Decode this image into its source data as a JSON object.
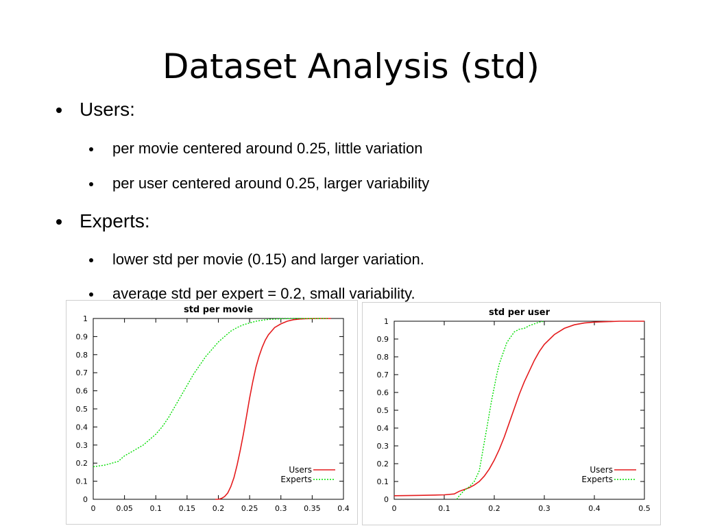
{
  "slide": {
    "title": "Dataset Analysis (std)",
    "bullets": [
      {
        "level": 1,
        "text": "Users:"
      },
      {
        "level": 2,
        "text": "per movie centered around 0.25, little variation"
      },
      {
        "level": 2,
        "text": "per user centered around 0.25, larger variability"
      },
      {
        "level": 1,
        "text": "Experts:"
      },
      {
        "level": 2,
        "text": "lower std per movie (0.15) and larger variation."
      },
      {
        "level": 2,
        "text": "average std per expert = 0.2, small variability."
      }
    ]
  },
  "colors": {
    "users_series": "#e41a1c",
    "experts_series": "#00dd00",
    "axis": "#000000",
    "panel_border": "#cfcfcf"
  },
  "chart_data": [
    {
      "type": "line",
      "title": "std per movie",
      "xlabel": "",
      "ylabel": "",
      "xlim": [
        0,
        0.4
      ],
      "ylim": [
        0,
        1
      ],
      "xticks": [
        "0",
        "0.05",
        "0.1",
        "0.15",
        "0.2",
        "0.25",
        "0.3",
        "0.35",
        "0.4"
      ],
      "yticks": [
        "0",
        "0.1",
        "0.2",
        "0.3",
        "0.4",
        "0.5",
        "0.6",
        "0.7",
        "0.8",
        "0.9",
        "1"
      ],
      "legend_position": "bottom-right",
      "grid": false,
      "series": [
        {
          "name": "Users",
          "style": "solid",
          "x": [
            0.195,
            0.2,
            0.205,
            0.21,
            0.215,
            0.22,
            0.225,
            0.23,
            0.235,
            0.24,
            0.245,
            0.25,
            0.255,
            0.26,
            0.265,
            0.27,
            0.275,
            0.28,
            0.285,
            0.29,
            0.3,
            0.31,
            0.32,
            0.33,
            0.34,
            0.36,
            0.38
          ],
          "y": [
            0,
            0,
            0.005,
            0.015,
            0.035,
            0.07,
            0.12,
            0.19,
            0.27,
            0.36,
            0.46,
            0.56,
            0.65,
            0.73,
            0.79,
            0.84,
            0.88,
            0.91,
            0.93,
            0.95,
            0.97,
            0.985,
            0.993,
            0.997,
            0.999,
            1,
            1
          ]
        },
        {
          "name": "Experts",
          "style": "dashed",
          "x": [
            0,
            0.01,
            0.02,
            0.03,
            0.04,
            0.05,
            0.06,
            0.07,
            0.08,
            0.09,
            0.1,
            0.11,
            0.12,
            0.13,
            0.14,
            0.15,
            0.16,
            0.17,
            0.18,
            0.19,
            0.2,
            0.21,
            0.22,
            0.23,
            0.24,
            0.25,
            0.26,
            0.27,
            0.28,
            0.3,
            0.32,
            0.35,
            0.375
          ],
          "y": [
            0.18,
            0.185,
            0.19,
            0.2,
            0.21,
            0.24,
            0.26,
            0.28,
            0.3,
            0.33,
            0.36,
            0.4,
            0.45,
            0.51,
            0.57,
            0.63,
            0.69,
            0.74,
            0.79,
            0.83,
            0.87,
            0.9,
            0.93,
            0.95,
            0.965,
            0.975,
            0.985,
            0.99,
            0.995,
            0.998,
            1,
            1,
            1
          ]
        }
      ]
    },
    {
      "type": "line",
      "title": "std per user",
      "xlabel": "",
      "ylabel": "",
      "xlim": [
        0,
        0.5
      ],
      "ylim": [
        0,
        1
      ],
      "xticks": [
        "0",
        "0.1",
        "0.2",
        "0.3",
        "0.4",
        "0.5"
      ],
      "yticks": [
        "0",
        "0.1",
        "0.2",
        "0.3",
        "0.4",
        "0.5",
        "0.6",
        "0.7",
        "0.8",
        "0.9",
        "1"
      ],
      "legend_position": "bottom-right",
      "grid": false,
      "series": [
        {
          "name": "Users",
          "style": "solid",
          "x": [
            0,
            0.05,
            0.1,
            0.12,
            0.13,
            0.14,
            0.15,
            0.16,
            0.17,
            0.18,
            0.19,
            0.2,
            0.21,
            0.22,
            0.23,
            0.24,
            0.25,
            0.26,
            0.27,
            0.28,
            0.29,
            0.3,
            0.32,
            0.34,
            0.36,
            0.38,
            0.4,
            0.45,
            0.5
          ],
          "y": [
            0.02,
            0.022,
            0.025,
            0.03,
            0.045,
            0.055,
            0.065,
            0.08,
            0.1,
            0.13,
            0.17,
            0.22,
            0.28,
            0.35,
            0.43,
            0.51,
            0.59,
            0.66,
            0.72,
            0.78,
            0.83,
            0.87,
            0.925,
            0.96,
            0.98,
            0.99,
            0.995,
            1,
            1
          ]
        },
        {
          "name": "Experts",
          "style": "dashed",
          "x": [
            0.125,
            0.13,
            0.14,
            0.15,
            0.16,
            0.17,
            0.175,
            0.18,
            0.185,
            0.19,
            0.195,
            0.2,
            0.205,
            0.21,
            0.215,
            0.22,
            0.225,
            0.23,
            0.24,
            0.25,
            0.26,
            0.27,
            0.28,
            0.29,
            0.3
          ],
          "y": [
            0,
            0.02,
            0.05,
            0.07,
            0.1,
            0.16,
            0.24,
            0.32,
            0.4,
            0.48,
            0.56,
            0.63,
            0.7,
            0.76,
            0.8,
            0.84,
            0.88,
            0.9,
            0.94,
            0.955,
            0.96,
            0.975,
            0.985,
            0.995,
            1
          ]
        }
      ]
    }
  ]
}
